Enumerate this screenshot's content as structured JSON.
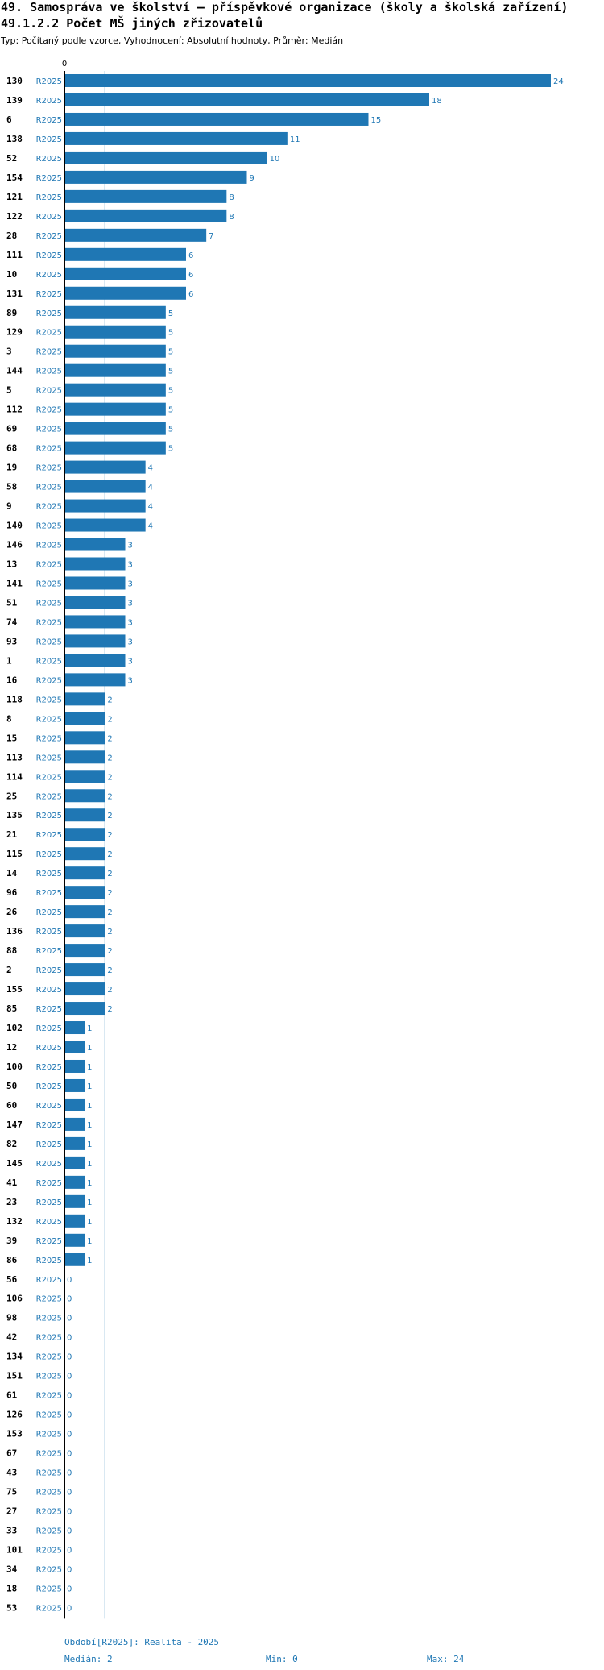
{
  "title_line1": "49. Samospráva ve školství – příspěvkové organizace (školy a školská zařízení)",
  "title_line2": "49.1.2.2 Počet MŠ jiných zřizovatelů",
  "subtitle": "Typ: Počítaný podle vzorce, Vyhodnocení: Absolutní hodnoty, Průměr: Medián",
  "colors": {
    "bar": "#1f77b4",
    "label": "#1f77b4",
    "axis": "#000000",
    "median_line": "#1f77b4"
  },
  "chart_data": {
    "type": "bar",
    "orientation": "horizontal",
    "series_label": "R2025",
    "axis_zero_label": "0",
    "xlim": [
      0,
      24
    ],
    "median": 2,
    "categories": [
      "130",
      "139",
      "6",
      "138",
      "52",
      "154",
      "121",
      "122",
      "28",
      "111",
      "10",
      "131",
      "89",
      "129",
      "3",
      "144",
      "5",
      "112",
      "69",
      "68",
      "19",
      "58",
      "9",
      "140",
      "146",
      "13",
      "141",
      "51",
      "74",
      "93",
      "1",
      "16",
      "118",
      "8",
      "15",
      "113",
      "114",
      "25",
      "135",
      "21",
      "115",
      "14",
      "96",
      "26",
      "136",
      "88",
      "2",
      "155",
      "85",
      "102",
      "12",
      "100",
      "50",
      "60",
      "147",
      "82",
      "145",
      "41",
      "23",
      "132",
      "39",
      "86",
      "56",
      "106",
      "98",
      "42",
      "134",
      "151",
      "61",
      "126",
      "153",
      "67",
      "43",
      "75",
      "27",
      "33",
      "101",
      "34",
      "18",
      "53"
    ],
    "values": [
      24,
      18,
      15,
      11,
      10,
      9,
      8,
      8,
      7,
      6,
      6,
      6,
      5,
      5,
      5,
      5,
      5,
      5,
      5,
      5,
      4,
      4,
      4,
      4,
      3,
      3,
      3,
      3,
      3,
      3,
      3,
      3,
      2,
      2,
      2,
      2,
      2,
      2,
      2,
      2,
      2,
      2,
      2,
      2,
      2,
      2,
      2,
      2,
      2,
      1,
      1,
      1,
      1,
      1,
      1,
      1,
      1,
      1,
      1,
      1,
      1,
      1,
      0,
      0,
      0,
      0,
      0,
      0,
      0,
      0,
      0,
      0,
      0,
      0,
      0,
      0,
      0,
      0,
      0,
      0
    ]
  },
  "footer": {
    "period": "Období[R2025]: Realita - 2025",
    "median": "Medián: 2",
    "min": "Min: 0",
    "max": "Max: 24"
  }
}
